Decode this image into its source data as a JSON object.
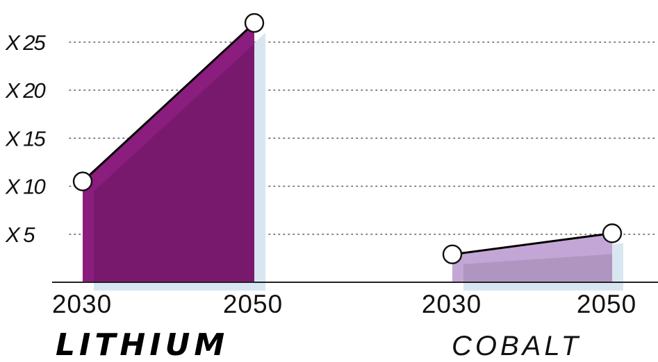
{
  "chart_data": {
    "type": "area",
    "x": [
      "2030",
      "2050"
    ],
    "y_ticks": [
      {
        "value": 5,
        "label": "X 5"
      },
      {
        "value": 10,
        "label": "X 10"
      },
      {
        "value": 15,
        "label": "X 15"
      },
      {
        "value": 20,
        "label": "X 20"
      },
      {
        "value": 25,
        "label": "X 25"
      }
    ],
    "ylim": [
      0,
      28
    ],
    "grid": true,
    "panels": [
      {
        "name": "LITHIUM",
        "name_style": "bold",
        "x_tick_labels": [
          "2030",
          "2050"
        ],
        "values": [
          10.5,
          27
        ],
        "color": "#8a1d7e",
        "shadow_color": "#d8e6f1"
      },
      {
        "name": "COBALT",
        "name_style": "light",
        "x_tick_labels": [
          "2030",
          "2050"
        ],
        "values": [
          2.9,
          5.1
        ],
        "color": "#c3a6d6",
        "shadow_color": "#d8e6f1"
      }
    ]
  }
}
